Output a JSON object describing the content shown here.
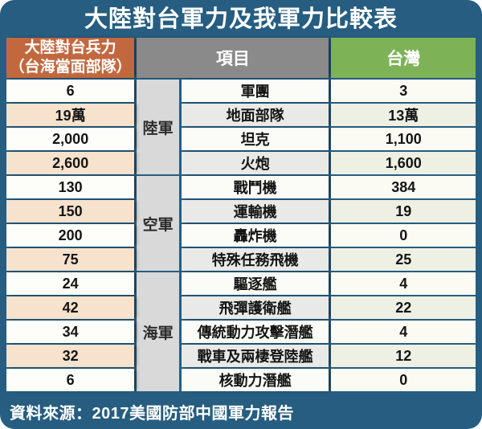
{
  "colors": {
    "frame_blue": "#265D80",
    "header_orange": "#C2683F",
    "header_gray": "#8A8A8A",
    "header_green": "#7DB356",
    "category_column_gray": "#D9D9D9",
    "even_row_peach": "#F7E2CD",
    "even_row_gray": "#E9E9E7",
    "even_row_green": "#EDF0E3"
  },
  "chart_data": {
    "type": "table",
    "title": "大陸對台軍力及我軍力比較表",
    "header": {
      "china_line1": "大陸對台兵力",
      "china_line2": "（台海當面部隊）",
      "item": "項目",
      "taiwan": "台灣"
    },
    "groups": [
      {
        "category": "陸軍",
        "rows": [
          {
            "china": "6",
            "item": "軍團",
            "taiwan": "3"
          },
          {
            "china": "19萬",
            "item": "地面部隊",
            "taiwan": "13萬"
          },
          {
            "china": "2,000",
            "item": "坦克",
            "taiwan": "1,100"
          },
          {
            "china": "2,600",
            "item": "火炮",
            "taiwan": "1,600"
          }
        ]
      },
      {
        "category": "空軍",
        "rows": [
          {
            "china": "130",
            "item": "戰鬥機",
            "taiwan": "384"
          },
          {
            "china": "150",
            "item": "運輸機",
            "taiwan": "19"
          },
          {
            "china": "200",
            "item": "轟炸機",
            "taiwan": "0"
          },
          {
            "china": "75",
            "item": "特殊任務飛機",
            "taiwan": "25"
          }
        ]
      },
      {
        "category": "海軍",
        "rows": [
          {
            "china": "24",
            "item": "驅逐艦",
            "taiwan": "4"
          },
          {
            "china": "42",
            "item": "飛彈護衛艦",
            "taiwan": "22"
          },
          {
            "china": "34",
            "item": "傳統動力攻擊潛艦",
            "taiwan": "4"
          },
          {
            "china": "32",
            "item": "戰車及兩棲登陸艦",
            "taiwan": "12"
          },
          {
            "china": "6",
            "item": "核動力潛艦",
            "taiwan": "0"
          }
        ]
      }
    ],
    "source": "資料來源：2017美國防部中國軍力報告"
  }
}
